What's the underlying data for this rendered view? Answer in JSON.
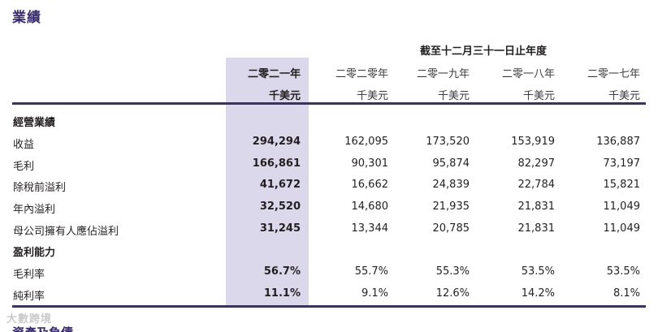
{
  "title": "業績",
  "period_header": "截至十二月三十一日止年度",
  "columns": [
    {
      "year": "二零二一年",
      "unit": "千美元"
    },
    {
      "year": "二零二零年",
      "unit": "千美元"
    },
    {
      "year": "二零一九年",
      "unit": "千美元"
    },
    {
      "year": "二零一八年",
      "unit": "千美元"
    },
    {
      "year": "二零一七年",
      "unit": "千美元"
    }
  ],
  "section_operating": "經營業績",
  "section_profitability": "盈利能力",
  "rows": [
    {
      "label": "收益",
      "values": [
        "294,294",
        "162,095",
        "173,520",
        "153,919",
        "136,887"
      ]
    },
    {
      "label": "毛利",
      "values": [
        "166,861",
        "90,301",
        "95,874",
        "82,297",
        "73,197"
      ]
    },
    {
      "label": "除稅前溢利",
      "values": [
        "41,672",
        "16,662",
        "24,839",
        "22,784",
        "15,821"
      ]
    },
    {
      "label": "年內溢利",
      "values": [
        "32,520",
        "14,680",
        "21,935",
        "21,831",
        "11,049"
      ]
    },
    {
      "label": "母公司擁有人應佔溢利",
      "values": [
        "31,245",
        "13,344",
        "20,785",
        "21,831",
        "11,049"
      ]
    }
  ],
  "ratio_rows": [
    {
      "label": "毛利率",
      "values": [
        "56.7%",
        "55.7%",
        "55.3%",
        "53.5%",
        "53.5%"
      ]
    },
    {
      "label": "純利率",
      "values": [
        "11.1%",
        "9.1%",
        "12.6%",
        "14.2%",
        "8.1%"
      ]
    }
  ],
  "watermark": "大數跨境",
  "next_heading": "資產及負債"
}
